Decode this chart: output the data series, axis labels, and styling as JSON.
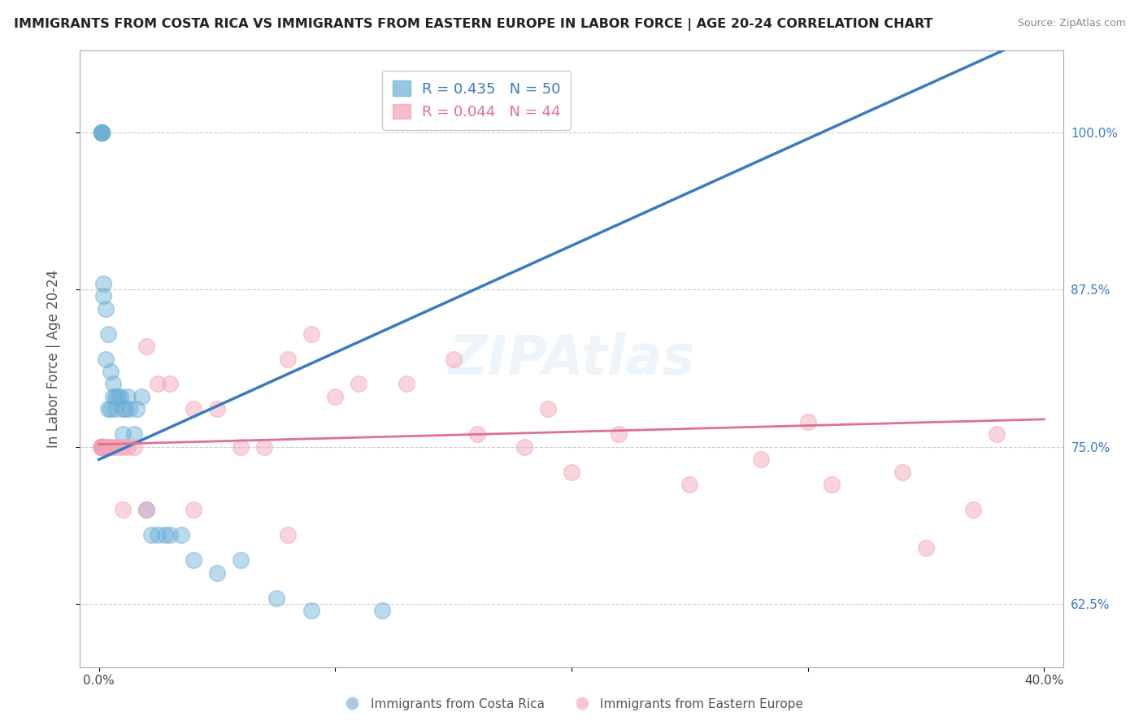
{
  "title": "IMMIGRANTS FROM COSTA RICA VS IMMIGRANTS FROM EASTERN EUROPE IN LABOR FORCE | AGE 20-24 CORRELATION CHART",
  "source": "Source: ZipAtlas.com",
  "ylabel": "In Labor Force | Age 20-24",
  "blue_R": 0.435,
  "blue_N": 50,
  "pink_R": 0.044,
  "pink_N": 44,
  "blue_color": "#6aaed6",
  "pink_color": "#f4a0b5",
  "blue_line_color": "#3a7abf",
  "pink_line_color": "#e07090",
  "legend_label_blue": "Immigrants from Costa Rica",
  "legend_label_pink": "Immigrants from Eastern Europe",
  "watermark": "ZIPAtlas",
  "background_color": "#ffffff",
  "grid_color": "#cccccc",
  "blue_x": [
    0.001,
    0.001,
    0.001,
    0.001,
    0.001,
    0.001,
    0.001,
    0.001,
    0.001,
    0.001,
    0.001,
    0.001,
    0.001,
    0.001,
    0.001,
    0.002,
    0.002,
    0.002,
    0.003,
    0.003,
    0.004,
    0.004,
    0.005,
    0.005,
    0.006,
    0.006,
    0.007,
    0.007,
    0.008,
    0.009,
    0.01,
    0.01,
    0.011,
    0.012,
    0.013,
    0.015,
    0.016,
    0.018,
    0.02,
    0.022,
    0.025,
    0.028,
    0.03,
    0.035,
    0.04,
    0.05,
    0.06,
    0.075,
    0.09,
    0.12
  ],
  "blue_y": [
    1.0,
    1.0,
    1.0,
    1.0,
    1.0,
    0.75,
    0.75,
    0.75,
    0.75,
    0.75,
    0.75,
    0.75,
    0.75,
    0.75,
    0.75,
    0.88,
    0.87,
    0.75,
    0.86,
    0.82,
    0.84,
    0.78,
    0.81,
    0.78,
    0.8,
    0.79,
    0.79,
    0.78,
    0.79,
    0.79,
    0.78,
    0.76,
    0.78,
    0.79,
    0.78,
    0.76,
    0.78,
    0.79,
    0.7,
    0.68,
    0.68,
    0.68,
    0.68,
    0.68,
    0.66,
    0.65,
    0.66,
    0.63,
    0.62,
    0.62
  ],
  "pink_x": [
    0.001,
    0.001,
    0.001,
    0.001,
    0.001,
    0.002,
    0.003,
    0.004,
    0.005,
    0.006,
    0.008,
    0.01,
    0.012,
    0.015,
    0.02,
    0.025,
    0.03,
    0.04,
    0.05,
    0.06,
    0.07,
    0.08,
    0.09,
    0.1,
    0.11,
    0.13,
    0.15,
    0.16,
    0.18,
    0.19,
    0.2,
    0.22,
    0.25,
    0.28,
    0.3,
    0.31,
    0.34,
    0.35,
    0.37,
    0.38,
    0.01,
    0.02,
    0.04,
    0.08
  ],
  "pink_y": [
    0.75,
    0.75,
    0.75,
    0.75,
    0.75,
    0.75,
    0.75,
    0.75,
    0.75,
    0.75,
    0.75,
    0.75,
    0.75,
    0.75,
    0.83,
    0.8,
    0.8,
    0.78,
    0.78,
    0.75,
    0.75,
    0.82,
    0.84,
    0.79,
    0.8,
    0.8,
    0.82,
    0.76,
    0.75,
    0.78,
    0.73,
    0.76,
    0.72,
    0.74,
    0.77,
    0.72,
    0.73,
    0.67,
    0.7,
    0.76,
    0.7,
    0.7,
    0.7,
    0.68
  ]
}
